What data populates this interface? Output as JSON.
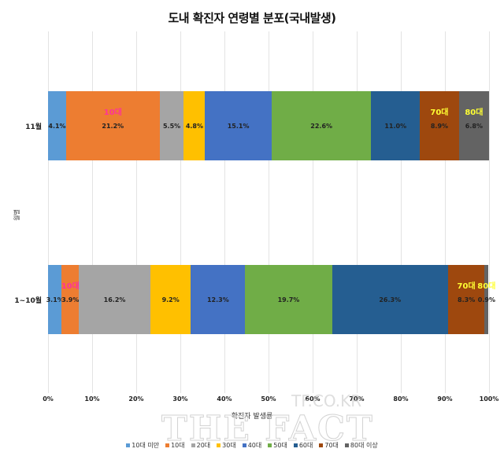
{
  "header": {
    "title": "도내 확진자 연령별 분포(국내발생)"
  },
  "axes": {
    "ylabel": "월별",
    "xlabel": "확진자 발생률"
  },
  "watermark": {
    "line1": "TF.CO.KR",
    "line2": "THE FACT"
  },
  "colors": [
    "#5B9BD5",
    "#ED7D31",
    "#A5A5A5",
    "#FFC000",
    "#4472C4",
    "#70AD47",
    "#255E91",
    "#9E480E",
    "#636363"
  ],
  "chart_data": {
    "type": "bar",
    "orientation": "horizontal",
    "stacked": "percent",
    "title": "도내 확진자 연령별 분포(국내발생)",
    "xlabel": "확진자 발생률",
    "ylabel": "월별",
    "xlim": [
      0,
      100
    ],
    "xticks": [
      "0%",
      "10%",
      "20%",
      "30%",
      "40%",
      "50%",
      "60%",
      "70%",
      "80%",
      "90%",
      "100%"
    ],
    "grid": true,
    "legend_position": "bottom",
    "categories": [
      "11월",
      "1~10월"
    ],
    "series": [
      {
        "name": "10대 미만",
        "values": [
          4.1,
          3.1
        ],
        "color": "#5B9BD5"
      },
      {
        "name": "10대",
        "values": [
          21.2,
          3.9
        ],
        "color": "#ED7D31"
      },
      {
        "name": "20대",
        "values": [
          5.5,
          16.2
        ],
        "color": "#A5A5A5"
      },
      {
        "name": "30대",
        "values": [
          4.8,
          9.2
        ],
        "color": "#FFC000"
      },
      {
        "name": "40대",
        "values": [
          15.1,
          12.3
        ],
        "color": "#4472C4"
      },
      {
        "name": "50대",
        "values": [
          22.6,
          19.7
        ],
        "color": "#70AD47"
      },
      {
        "name": "60대",
        "values": [
          11.0,
          26.3
        ],
        "color": "#255E91"
      },
      {
        "name": "70대",
        "values": [
          8.9,
          8.3
        ],
        "color": "#9E480E"
      },
      {
        "name": "80대 이상",
        "values": [
          6.8,
          0.9
        ],
        "color": "#636363"
      }
    ],
    "annotations": [
      {
        "text": "10대",
        "category": "11월",
        "color": "#FF3399"
      },
      {
        "text": "70대",
        "category": "11월",
        "color": "#FFFF33"
      },
      {
        "text": "80대",
        "category": "11월",
        "color": "#FFFF33"
      },
      {
        "text": "10대",
        "category": "1~10월",
        "color": "#FF3399"
      },
      {
        "text": "70대",
        "category": "1~10월",
        "color": "#FFFF33"
      },
      {
        "text": "80대",
        "category": "1~10월",
        "color": "#FFFF33"
      }
    ]
  }
}
